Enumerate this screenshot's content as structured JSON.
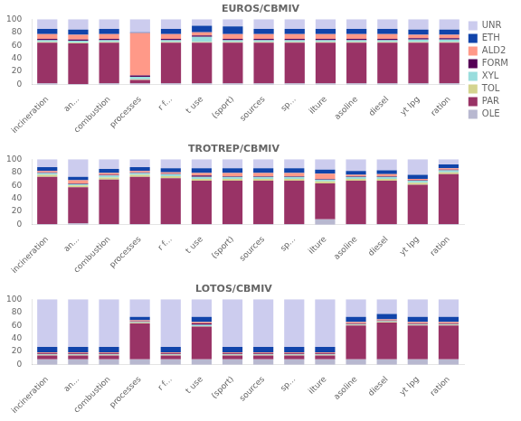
{
  "chart_data": [
    {
      "type": "bar",
      "title": "EUROS/CBMIV",
      "categories": [
        "incineration",
        "an...",
        "combustion",
        "processes",
        "r f...",
        "t use",
        "(sport)",
        "sources",
        "sp...",
        "ilture",
        "asoline",
        "diesel",
        "yt lpg",
        "ration"
      ],
      "series": [
        {
          "name": "OLE",
          "color": "#B8B8D0",
          "values": [
            2,
            1,
            2,
            2,
            2,
            2,
            2,
            2,
            2,
            2,
            2,
            2,
            2,
            2
          ]
        },
        {
          "name": "PAR",
          "color": "#993366",
          "values": [
            62,
            62,
            62,
            5,
            62,
            62,
            62,
            62,
            62,
            62,
            62,
            62,
            62,
            62
          ]
        },
        {
          "name": "TOL",
          "color": "#D4D490",
          "values": [
            1,
            1,
            1,
            1,
            1,
            1,
            1,
            1,
            1,
            1,
            1,
            1,
            1,
            1
          ]
        },
        {
          "name": "XYL",
          "color": "#99DDDD",
          "values": [
            3,
            3,
            3,
            4,
            3,
            8,
            3,
            3,
            3,
            3,
            3,
            3,
            4,
            4
          ]
        },
        {
          "name": "FORM",
          "color": "#550055",
          "values": [
            2,
            2,
            2,
            2,
            2,
            2,
            2,
            2,
            2,
            2,
            2,
            2,
            2,
            2
          ]
        },
        {
          "name": "ALD2",
          "color": "#FF9988",
          "values": [
            7,
            7,
            7,
            65,
            7,
            5,
            7,
            7,
            7,
            7,
            7,
            7,
            5,
            5
          ]
        },
        {
          "name": "ETH",
          "color": "#1144AA",
          "values": [
            8,
            8,
            8,
            1,
            8,
            10,
            12,
            8,
            8,
            8,
            8,
            8,
            8,
            8
          ]
        },
        {
          "name": "UNR",
          "color": "#CCCCEE",
          "values": [
            15,
            16,
            15,
            20,
            15,
            10,
            11,
            15,
            15,
            15,
            15,
            15,
            16,
            16
          ]
        }
      ],
      "stacked": true,
      "ylim": [
        0,
        100
      ],
      "yticks": [
        0,
        20,
        40,
        60,
        80,
        100
      ],
      "grid": false,
      "legend": "right"
    },
    {
      "type": "bar",
      "title": "TROTREP/CBMIV",
      "categories": [
        "incineration",
        "an...",
        "combustion",
        "processes",
        "r f...",
        "t use",
        "(sport)",
        "sources",
        "sp...",
        "ilture",
        "asoline",
        "diesel",
        "yt lpg",
        "ration"
      ],
      "series": [
        {
          "name": "OLE",
          "color": "#B8B8D0",
          "values": [
            1,
            2,
            1,
            1,
            1,
            1,
            1,
            1,
            1,
            8,
            1,
            1,
            1,
            1
          ]
        },
        {
          "name": "PAR",
          "color": "#993366",
          "values": [
            72,
            55,
            68,
            72,
            70,
            66,
            66,
            66,
            66,
            55,
            66,
            66,
            60,
            76
          ]
        },
        {
          "name": "TOL",
          "color": "#D4D490",
          "values": [
            3,
            3,
            3,
            3,
            3,
            3,
            3,
            3,
            3,
            3,
            3,
            3,
            3,
            3
          ]
        },
        {
          "name": "XYL",
          "color": "#99DDDD",
          "values": [
            3,
            2,
            3,
            3,
            3,
            3,
            3,
            3,
            3,
            3,
            3,
            3,
            3,
            3
          ]
        },
        {
          "name": "FORM",
          "color": "#550055",
          "values": [
            1,
            1,
            1,
            1,
            1,
            2,
            1,
            1,
            1,
            1,
            1,
            1,
            1,
            1
          ]
        },
        {
          "name": "ALD2",
          "color": "#FF9988",
          "values": [
            2,
            5,
            3,
            2,
            2,
            4,
            5,
            5,
            5,
            8,
            2,
            3,
            2,
            2
          ]
        },
        {
          "name": "ETH",
          "color": "#1144AA",
          "values": [
            6,
            5,
            6,
            6,
            6,
            7,
            7,
            7,
            7,
            6,
            6,
            6,
            6,
            6
          ]
        },
        {
          "name": "UNR",
          "color": "#CCCCEE",
          "values": [
            12,
            27,
            15,
            12,
            14,
            14,
            14,
            14,
            14,
            16,
            18,
            17,
            24,
            8
          ]
        }
      ],
      "stacked": true,
      "ylim": [
        0,
        100
      ],
      "yticks": [
        0,
        20,
        40,
        60,
        80,
        100
      ],
      "grid": false
    },
    {
      "type": "bar",
      "title": "LOTOS/CBMIV",
      "categories": [
        "incineration",
        "an...",
        "combustion",
        "processes",
        "r f...",
        "t use",
        "(sport)",
        "sources",
        "sp...",
        "ilture",
        "asoline",
        "diesel",
        "yt lpg",
        "ration"
      ],
      "series": [
        {
          "name": "OLE",
          "color": "#B8B8D0",
          "values": [
            8,
            8,
            8,
            8,
            8,
            8,
            8,
            8,
            8,
            8,
            8,
            8.16326530612245,
            8,
            8
          ]
        },
        {
          "name": "PAR",
          "color": "#993366",
          "values": [
            6,
            6,
            6,
            55,
            6,
            50,
            6,
            6,
            6,
            6,
            52,
            56.12244897959184,
            52,
            52
          ]
        },
        {
          "name": "TOL",
          "color": "#D4D490",
          "values": [
            1,
            1,
            1,
            1,
            1,
            1,
            1,
            1,
            1,
            1,
            1,
            1.0204081632653061,
            1,
            1
          ]
        },
        {
          "name": "XYL",
          "color": "#99DDDD",
          "values": [
            1,
            1,
            1,
            1,
            1,
            2,
            1,
            1,
            1,
            1,
            1,
            1.0204081632653061,
            1,
            1
          ]
        },
        {
          "name": "FORM",
          "color": "#550055",
          "values": [
            1,
            1,
            1,
            1,
            1,
            2,
            1,
            1,
            1,
            1,
            1,
            1.0204081632653061,
            1,
            1
          ]
        },
        {
          "name": "ALD2",
          "color": "#FF9988",
          "values": [
            2,
            2,
            2,
            2,
            2,
            2,
            2,
            2,
            2,
            2,
            2,
            2.0408163265306123,
            2,
            2
          ]
        },
        {
          "name": "ETH",
          "color": "#1144AA",
          "values": [
            8,
            8,
            8,
            5,
            8,
            8,
            8,
            8,
            8,
            8,
            8,
            8.16326530612245,
            8,
            8
          ]
        },
        {
          "name": "UNR",
          "color": "#CCCCEE",
          "values": [
            73,
            73,
            73,
            27,
            73,
            27,
            73,
            73,
            73,
            73,
            27,
            22.448979591836736,
            27,
            27
          ]
        }
      ],
      "stacked": true,
      "ylim": [
        0,
        100
      ],
      "yticks": [
        0,
        20,
        40,
        60,
        80,
        100
      ],
      "grid": false
    }
  ]
}
